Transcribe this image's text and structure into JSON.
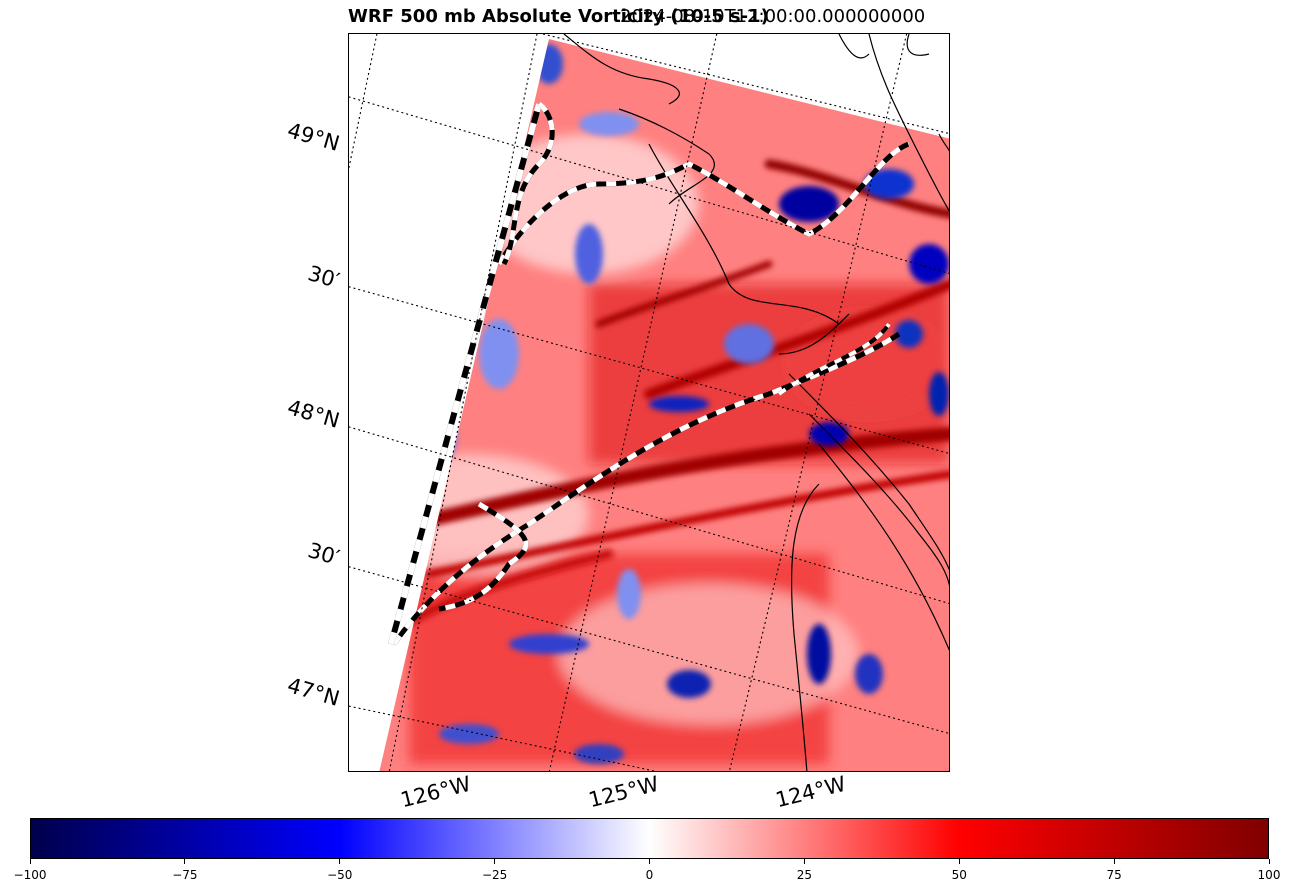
{
  "title": {
    "main": "WRF 500 mb Absolute Vorticity (10-5 s-1)",
    "valid_time": "2024-08-10T12:00:00.000000000"
  },
  "map": {
    "lat_labels": [
      "49°N",
      "30′",
      "48°N",
      "30′",
      "47°N"
    ],
    "lon_labels": [
      "126°W",
      "125°W",
      "124°W"
    ]
  },
  "colorbar": {
    "ticks": [
      "−100",
      "−75",
      "−50",
      "−25",
      "0",
      "25",
      "50",
      "75",
      "100"
    ],
    "range": [
      -100,
      100
    ],
    "colormap": [
      "#00004c",
      "#0000ff",
      "#ffffff",
      "#ff0000",
      "#800000"
    ]
  }
}
